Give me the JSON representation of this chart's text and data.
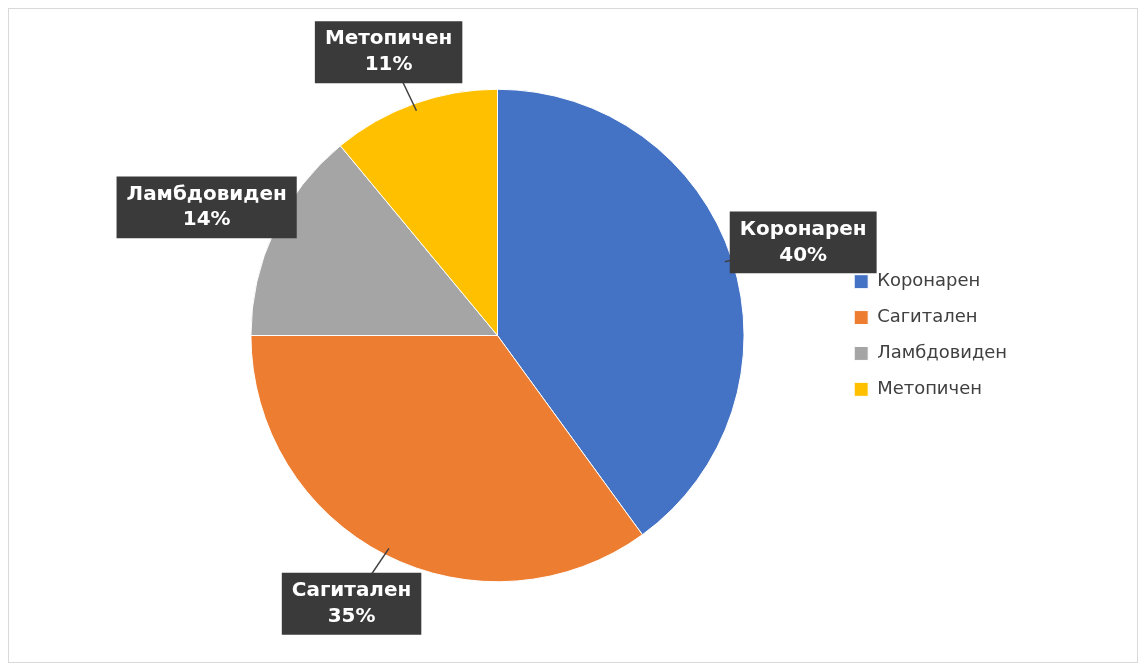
{
  "chart_data": {
    "type": "pie",
    "categories": [
      "Коронарен",
      "Сагитален",
      "Ламбдовиден",
      "Метопичен"
    ],
    "values": [
      40,
      35,
      14,
      11
    ],
    "colors": [
      "#4472c4",
      "#ed7d31",
      "#a5a5a5",
      "#ffc000"
    ],
    "value_labels": [
      "40%",
      "35%",
      "14%",
      "11%"
    ],
    "legend": "right"
  }
}
